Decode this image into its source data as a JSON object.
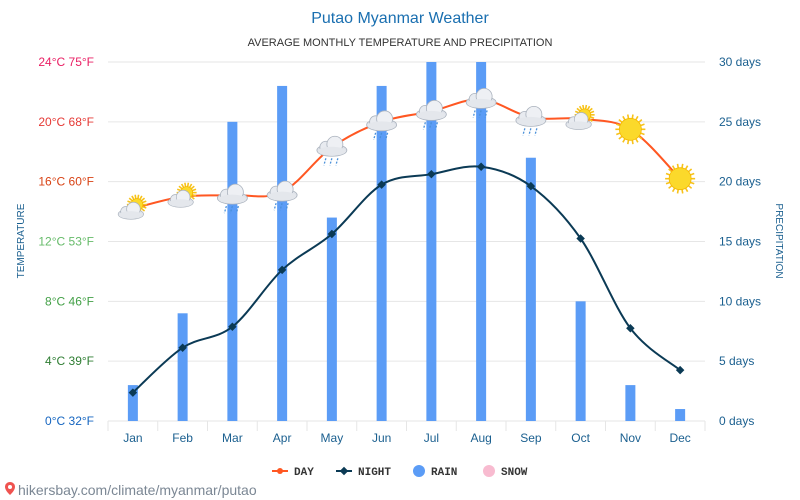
{
  "chart_data": {
    "type": "line",
    "title": "Putao Myanmar Weather",
    "subtitle": "AVERAGE MONTHLY TEMPERATURE AND PRECIPITATION",
    "categories": [
      "Jan",
      "Feb",
      "Mar",
      "Apr",
      "May",
      "Jun",
      "Jul",
      "Aug",
      "Sep",
      "Oct",
      "Nov",
      "Dec"
    ],
    "y_left": {
      "label": "TEMPERATURE",
      "range": [
        0,
        24
      ],
      "ticks": [
        "0°C 32°F",
        "4°C 39°F",
        "8°C 46°F",
        "12°C 53°F",
        "16°C 60°F",
        "20°C 68°F",
        "24°C 75°F"
      ],
      "tick_colors": [
        "#1565c0",
        "#2e7d32",
        "#43a047",
        "#66bb6a",
        "#d84315",
        "#e53935",
        "#e91e63"
      ]
    },
    "y_right": {
      "label": "PRECIPITATION",
      "range": [
        0,
        30
      ],
      "ticks": [
        "0 days",
        "5 days",
        "10 days",
        "15 days",
        "20 days",
        "25 days",
        "30 days"
      ]
    },
    "series": [
      {
        "name": "DAY",
        "kind": "line",
        "color": "#ff5722",
        "values": [
          14.2,
          15,
          15.1,
          15.3,
          18.3,
          20,
          20.7,
          21.5,
          20.3,
          20.2,
          19.5,
          16.2
        ]
      },
      {
        "name": "NIGHT",
        "kind": "line",
        "color": "#0b3a55",
        "values": [
          1.9,
          4.9,
          6.3,
          10.1,
          12.5,
          15.8,
          16.5,
          17,
          15.7,
          12.2,
          6.2,
          3.4
        ]
      },
      {
        "name": "RAIN",
        "kind": "bar",
        "axis": "right",
        "color": "#5b9cf6",
        "values": [
          3,
          9,
          25,
          28,
          17,
          28,
          30,
          30,
          22,
          10,
          3,
          1
        ]
      },
      {
        "name": "SNOW",
        "kind": "bar",
        "axis": "right",
        "color": "#f8bbd0",
        "values": [
          0,
          0,
          0,
          0,
          0,
          0,
          0,
          0,
          0,
          0,
          0,
          0
        ]
      }
    ],
    "weather_icons": [
      "cloud-sun-icon",
      "cloud-sun-icon",
      "rain-cloud-icon",
      "rain-cloud-icon",
      "rain-cloud-icon",
      "rain-cloud-icon",
      "rain-cloud-icon",
      "rain-cloud-icon",
      "rain-cloud-icon",
      "cloud-sun-icon",
      "sun-icon",
      "sun-icon"
    ],
    "grid": true,
    "legend_position": "bottom-center"
  },
  "footer": {
    "pin_icon": "location-pin-icon",
    "text": "hikersbay.com/climate/myanmar/putao"
  }
}
